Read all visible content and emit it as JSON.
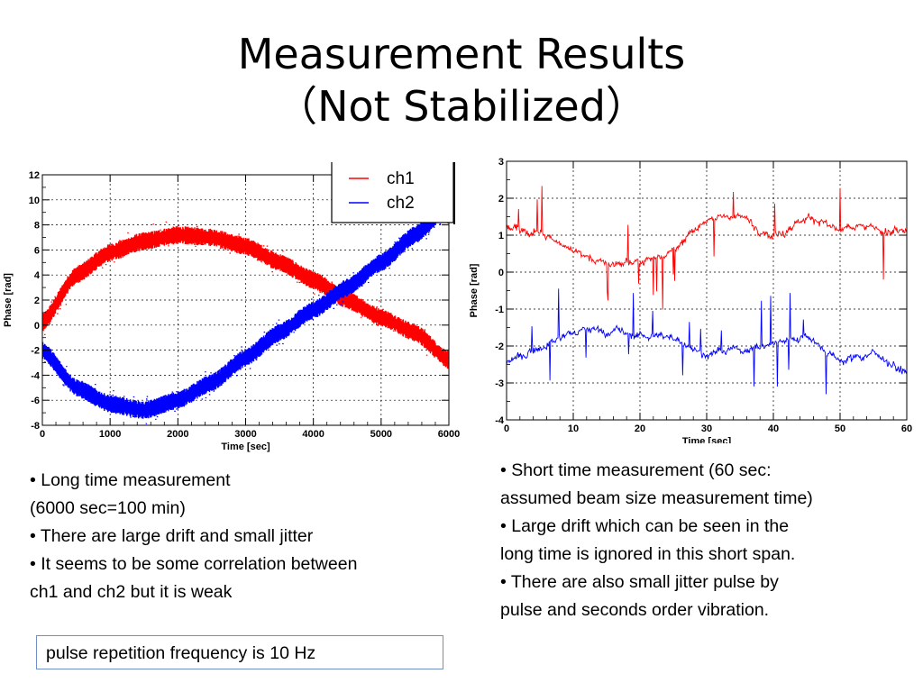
{
  "slide": {
    "title_line1": "Measurement Results",
    "title_line2": "（Not Stabilized）",
    "left_text": {
      "b1": "•  Long time measurement",
      "b1b": " (6000 sec=100 min)",
      "b2": "•  There are large drift and small jitter",
      "b3": "•  It seems to be some correlation between",
      "b3b": "ch1 and ch2 but it is weak"
    },
    "right_text": {
      "b1": "• Short time measurement (60 sec:",
      "b1b": "assumed beam size measurement time)",
      "b2": "• Large drift which can be seen in the",
      "b2b": "long time is ignored in this short span.",
      "b3": "• There are also small jitter pulse by",
      "b3b": "pulse and seconds order vibration."
    },
    "note": "pulse repetition frequency is 10 Hz"
  },
  "colors": {
    "ch1": "#ff0000",
    "ch2": "#0000ff",
    "grid": "#000000",
    "note_border": "#6f8fc7"
  },
  "chart_data": [
    {
      "type": "scatter",
      "xlabel": "Time [sec]",
      "ylabel": "Phase [rad]",
      "xlim": [
        0,
        6000
      ],
      "ylim": [
        -8,
        12
      ],
      "xticks": [
        0,
        1000,
        2000,
        3000,
        4000,
        5000,
        6000
      ],
      "yticks": [
        -8,
        -6,
        -4,
        -2,
        0,
        2,
        4,
        6,
        8,
        10,
        12
      ],
      "grid": true,
      "legend_position": "top-right",
      "series": [
        {
          "name": "ch1",
          "x": [
            0,
            500,
            1000,
            1500,
            2000,
            2500,
            3000,
            3500,
            4000,
            4500,
            5000,
            5500,
            6000
          ],
          "values": [
            0.2,
            4.0,
            5.8,
            6.7,
            7.2,
            7.0,
            6.3,
            5.0,
            3.6,
            2.0,
            0.6,
            -0.6,
            -2.8
          ]
        },
        {
          "name": "ch2",
          "x": [
            0,
            500,
            1000,
            1500,
            2000,
            2500,
            3000,
            3500,
            4000,
            4500,
            5000,
            5500,
            6000
          ],
          "values": [
            -2.0,
            -5.0,
            -6.3,
            -6.8,
            -6.0,
            -4.6,
            -2.6,
            -0.6,
            1.2,
            3.0,
            5.0,
            7.2,
            9.5
          ]
        }
      ]
    },
    {
      "type": "line",
      "xlabel": "Time [sec]",
      "ylabel": "Phase [rad]",
      "xlim": [
        0,
        60
      ],
      "ylim": [
        -4,
        3
      ],
      "xticks": [
        0,
        10,
        20,
        30,
        40,
        50,
        60
      ],
      "yticks": [
        -4,
        -3,
        -2,
        -1,
        0,
        1,
        2,
        3
      ],
      "grid": true,
      "series": [
        {
          "name": "ch1",
          "x": [
            0,
            5,
            10,
            15,
            20,
            25,
            30,
            35,
            40,
            45,
            50,
            55,
            60
          ],
          "values": [
            1.2,
            1.1,
            0.6,
            0.2,
            0.3,
            0.6,
            1.4,
            1.5,
            1.0,
            1.5,
            1.1,
            1.2,
            1.1
          ]
        },
        {
          "name": "ch2",
          "x": [
            0,
            5,
            10,
            15,
            20,
            25,
            30,
            35,
            40,
            45,
            50,
            55,
            60
          ],
          "values": [
            -2.5,
            -2.0,
            -1.6,
            -1.6,
            -1.7,
            -1.8,
            -2.2,
            -2.1,
            -2.0,
            -1.7,
            -2.4,
            -2.2,
            -2.7
          ]
        }
      ]
    }
  ]
}
